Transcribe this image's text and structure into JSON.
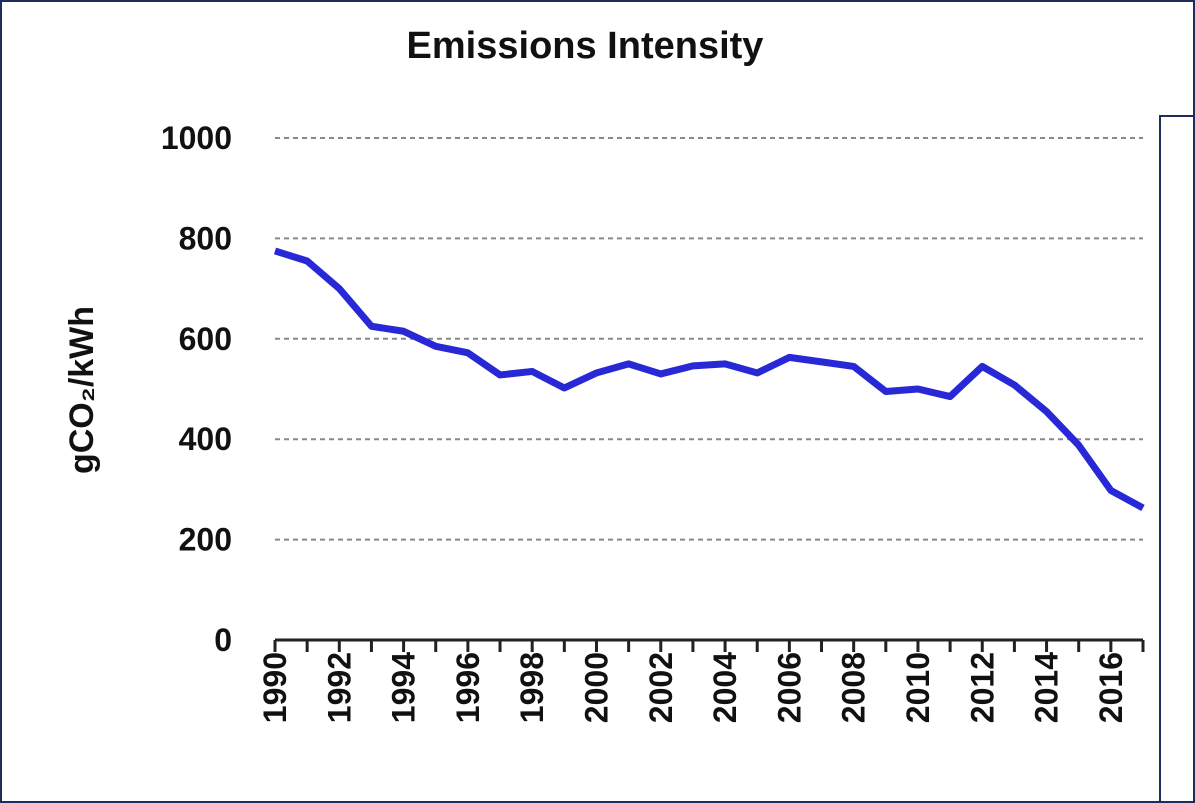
{
  "chart_data": {
    "type": "line",
    "title": "Emissions Intensity",
    "y_label": "gCO₂/kWh",
    "x": [
      1990,
      1991,
      1992,
      1993,
      1994,
      1995,
      1996,
      1997,
      1998,
      1999,
      2000,
      2001,
      2002,
      2003,
      2004,
      2005,
      2006,
      2007,
      2008,
      2009,
      2010,
      2011,
      2012,
      2013,
      2014,
      2015,
      2016,
      2017
    ],
    "series": [
      {
        "name": "Emissions Intensity",
        "color": "#2828d6",
        "values": [
          775,
          755,
          700,
          625,
          615,
          585,
          572,
          528,
          535,
          502,
          532,
          550,
          530,
          546,
          550,
          532,
          563,
          554,
          545,
          495,
          500,
          485,
          545,
          508,
          455,
          388,
          298,
          263
        ]
      }
    ],
    "xlim": [
      1990,
      2017
    ],
    "xticks": [
      1990,
      1992,
      1994,
      1996,
      1998,
      2000,
      2002,
      2004,
      2006,
      2008,
      2010,
      2012,
      2014,
      2016
    ],
    "ylim": [
      0,
      1000
    ],
    "yticks": [
      0,
      200,
      400,
      600,
      800,
      1000
    ],
    "grid": true
  }
}
